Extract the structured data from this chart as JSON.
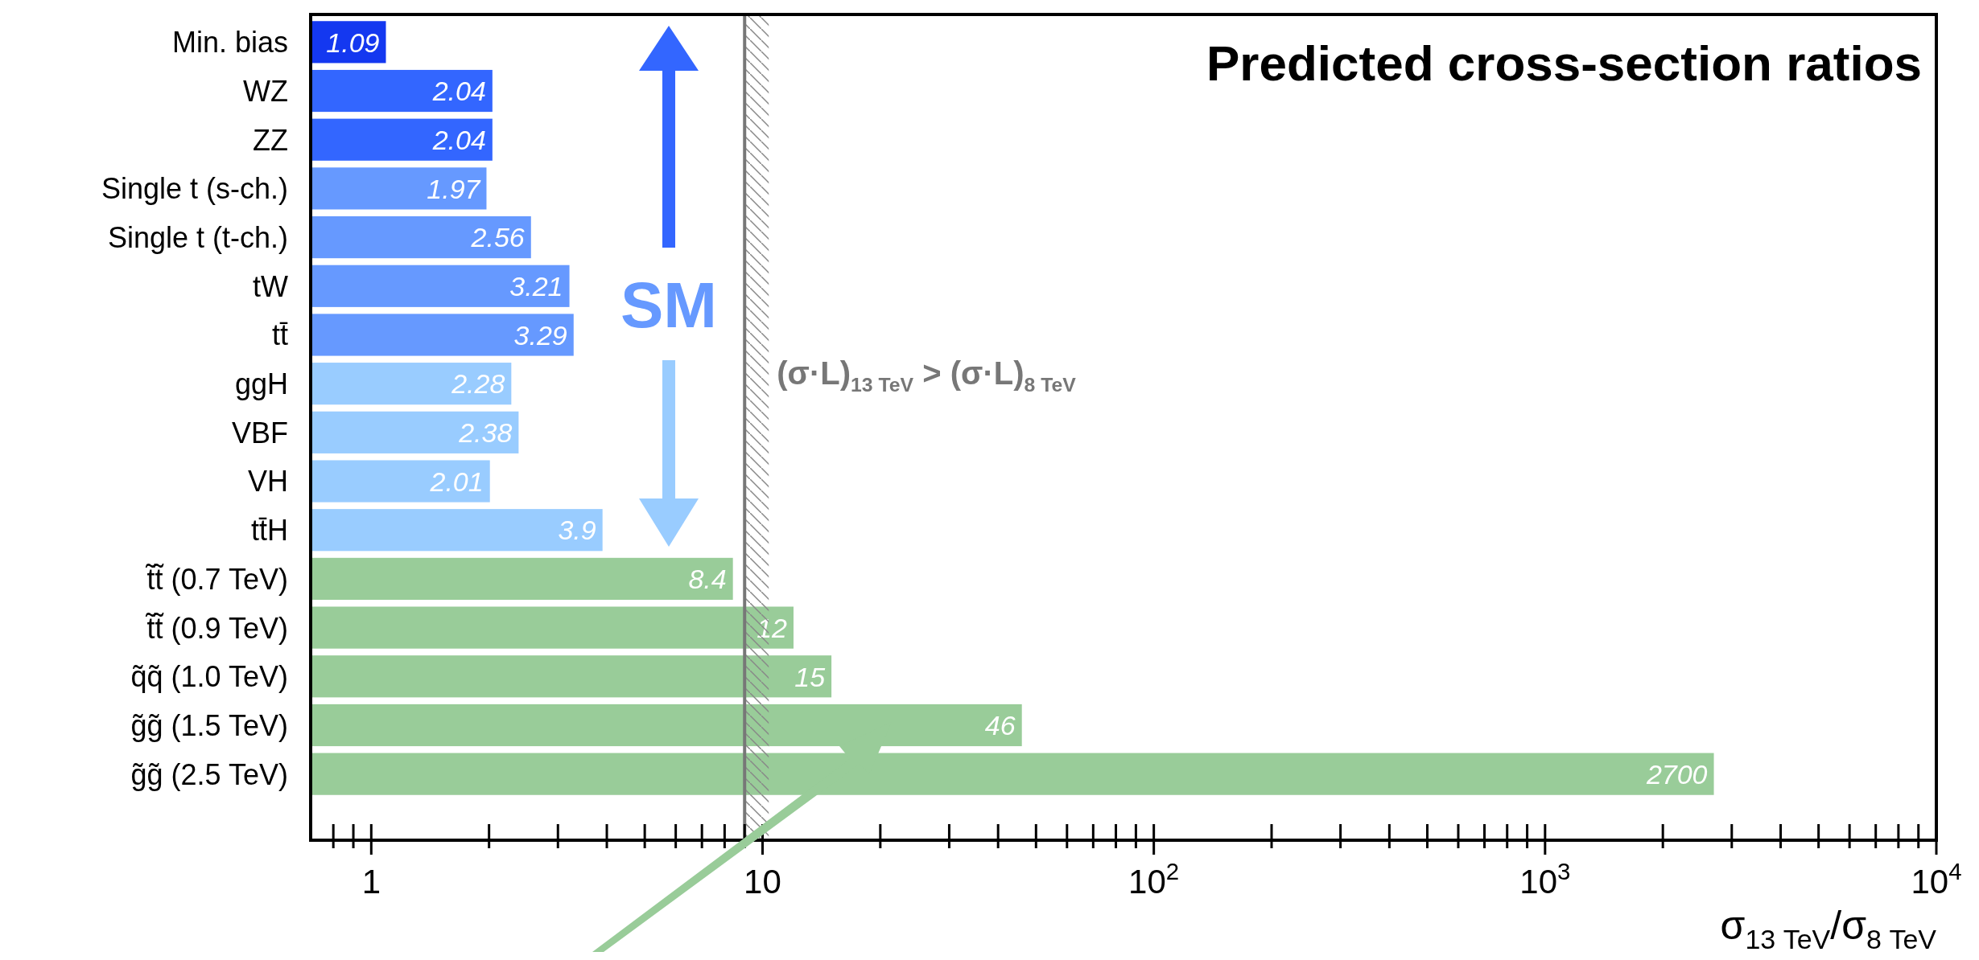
{
  "chart_data": {
    "type": "bar",
    "orientation": "horizontal",
    "log": "x",
    "title": "Predicted cross-section ratios",
    "xlabel": "σ$_{13 TeV}$/σ$_{8 TeV}$",
    "categories": [
      "Min. bias",
      "WZ",
      "ZZ",
      "Single t (s-ch.)",
      "Single t (t-ch.)",
      "tW",
      "tt̄",
      "ggH",
      "VBF",
      "VH",
      "tt̄H",
      "t̃t̃ (0.7 TeV)",
      "t̃t̃ (0.9 TeV)",
      "q̃q̃ (1.0 TeV)",
      "g̃g̃ (1.5 TeV)",
      "g̃g̃ (2.5 TeV)"
    ],
    "values": [
      1.09,
      2.04,
      2.04,
      1.97,
      2.56,
      3.21,
      3.29,
      2.28,
      2.38,
      2.01,
      3.9,
      8.4,
      12,
      15,
      46,
      2700
    ],
    "colors": [
      "#1438f0",
      "#3366ff",
      "#3366ff",
      "#6699ff",
      "#6699ff",
      "#6699ff",
      "#6699ff",
      "#99ccff",
      "#99ccff",
      "#99ccff",
      "#99ccff",
      "#99cc99",
      "#99cc99",
      "#99cc99",
      "#99cc99",
      "#99cc99"
    ],
    "data_labels": true,
    "xlim": [
      0.7,
      10000
    ],
    "xticks": [
      {
        "value": 0.8,
        "label": null
      },
      {
        "value": 0.9,
        "label": null
      },
      1,
      {
        "value": 2,
        "label": null
      },
      {
        "value": 3,
        "label": null
      },
      {
        "value": 4,
        "label": null
      },
      {
        "value": 5,
        "label": null
      },
      {
        "value": 6,
        "label": null
      },
      {
        "value": 7,
        "label": null
      },
      {
        "value": 8,
        "label": null
      },
      {
        "value": 9,
        "label": null
      },
      10,
      {
        "value": 20,
        "label": null
      },
      {
        "value": 30,
        "label": null
      },
      {
        "value": 40,
        "label": null
      },
      {
        "value": 50,
        "label": null
      },
      {
        "value": 60,
        "label": null
      },
      {
        "value": 70,
        "label": null
      },
      {
        "value": 80,
        "label": null
      },
      {
        "value": 90,
        "label": null
      },
      {
        "value": 100,
        "label": "10$^{2}$"
      },
      {
        "value": 200,
        "label": null
      },
      {
        "value": 300,
        "label": null
      },
      {
        "value": 400,
        "label": null
      },
      {
        "value": 500,
        "label": null
      },
      {
        "value": 600,
        "label": null
      },
      {
        "value": 700,
        "label": null
      },
      {
        "value": 800,
        "label": null
      },
      {
        "value": 900,
        "label": null
      },
      {
        "value": 1000,
        "label": "10$^{3}$"
      },
      {
        "value": 2000,
        "label": null
      },
      {
        "value": 3000,
        "label": null
      },
      {
        "value": 4000,
        "label": null
      },
      {
        "value": 5000,
        "label": null
      },
      {
        "value": 6000,
        "label": null
      },
      {
        "value": 7000,
        "label": null
      },
      {
        "value": 8000,
        "label": null
      },
      {
        "value": 9000,
        "label": null
      },
      {
        "value": 10000,
        "label": "10$^{4}$"
      }
    ],
    "ref_lines": [
      {
        "axis": "x",
        "value": 9,
        "label": "(σ·L)$_{13 TeV}$ > (σ·L)$_{8 TeV}$",
        "color": "#777777"
      }
    ],
    "annotations": [
      "SM"
    ]
  }
}
